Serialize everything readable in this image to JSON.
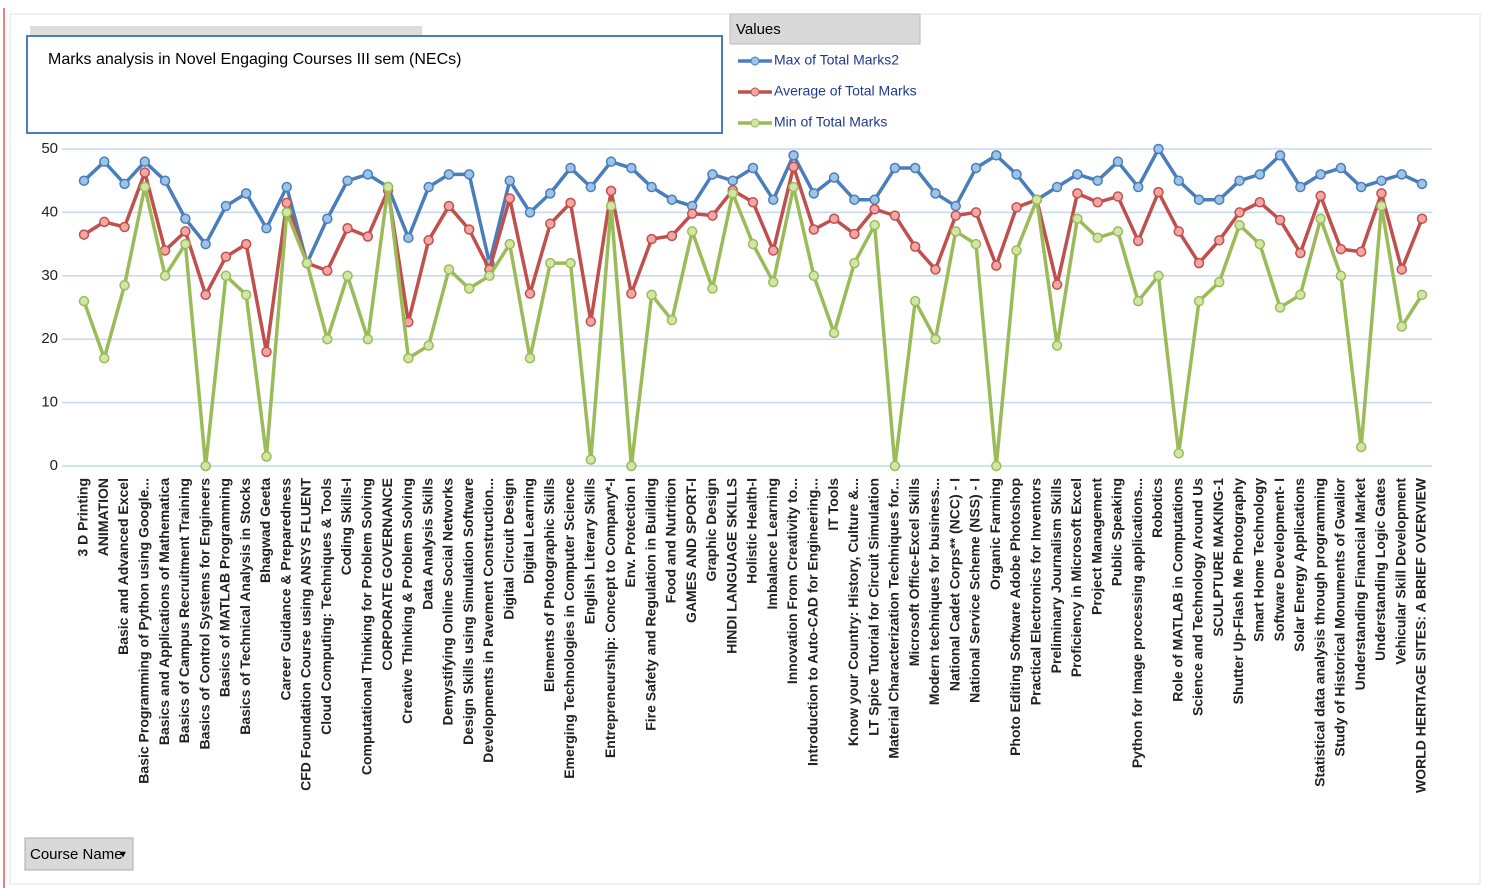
{
  "chart_data": {
    "type": "line",
    "title": "Marks analysis in Novel Engaging Courses III sem (NECs)",
    "legend_title": "Values",
    "field_button": "Course Name",
    "categories": [
      "3 D Printing",
      "ANIMATION",
      "Basic and Advanced Excel",
      "Basic Programming of Python using Google...",
      "Basics and Applications of Mathematica",
      "Basics of Campus Recruitment Training",
      "Basics of Control Systems for Engineers",
      "Basics of MATLAB Programming",
      "Basics of Technical Analysis in Stocks",
      "Bhagwad Geeta",
      "Career Guidance & Preparedness",
      "CFD Foundation Course using ANSYS FLUENT",
      "Cloud Computing: Techniques & Tools",
      "Coding Skills-I",
      "Computational Thinking for Problem Solving",
      "CORPORATE GOVERNANCE",
      "Creative Thinking & Problem Solving",
      "Data Analysis Skills",
      "Demystifying Online Social Networks",
      "Design Skills using Simulation Software",
      "Developments in Pavement Construction...",
      "Digital Circuit Design",
      "Digital Learning",
      "Elements of Photographic Skills",
      "Emerging Technologies in Computer Science",
      "English Literary Skills",
      "Entrepreneurship: Concept to Company*-I",
      "Env. Protection I",
      "Fire Safety and Regulation in Building",
      "Food and Nutrition",
      "GAMES AND SPORT-I",
      "Graphic Design",
      "HINDI LANGUAGE SKILLS",
      "Holistic Health-I",
      "Imbalance Learning",
      "Innovation From Creativity to...",
      "Introduction to Auto-CAD for Engineering...",
      "IT Tools",
      "Know your Country: History, Culture &...",
      "LT Spice Tutorial for Circuit Simulation",
      "Material Characterization Techniques for...",
      "Microsoft Office-Excel Skills",
      "Modern techniques for business...",
      "National Cadet Corps** (NCC) - I",
      "National Service Scheme (NSS) - I",
      "Organic  Farming",
      "Photo Editing Software Adobe Photoshop",
      "Practical Electronics for Inventors",
      "Preliminary Journalism Skills",
      "Proficiency in Microsoft Excel",
      "Project Management",
      "Public Speaking",
      "Python for Image processing applications...",
      "Robotics",
      "Role of MATLAB in Computations",
      "Science and Technology Around Us",
      "SCULPTURE MAKING-1",
      "Shutter Up-Flash Me Photography",
      "Smart Home Technology",
      "Software Development- I",
      "Solar Energy Applications",
      "Statistical data analysis through programming",
      "Study of Historical Monuments of Gwalior",
      "Understanding Financial Market",
      "Understanding Logic Gates",
      "Vehicular Skill Development",
      "WORLD HERITAGE SITES: A BRIEF OVERVIEW"
    ],
    "series": [
      {
        "name": "Max of Total Marks2",
        "color": "#4a7ebb",
        "values": [
          45,
          48,
          44.5,
          48,
          45,
          39,
          35,
          41,
          43,
          37.5,
          44,
          32,
          39,
          45,
          46,
          44,
          36,
          44,
          46,
          46,
          32,
          45,
          40,
          43,
          47,
          44,
          48,
          47,
          44,
          42,
          41,
          46,
          45,
          47,
          42,
          49,
          43,
          45.5,
          42,
          42,
          47,
          47,
          43,
          41,
          47,
          49,
          46,
          42,
          44,
          46,
          45,
          48,
          44,
          50,
          45,
          42,
          42,
          45,
          46,
          49,
          44,
          46,
          47,
          44,
          45,
          46,
          44.5
        ]
      },
      {
        "name": "Average of Total Marks",
        "color": "#c0504d",
        "values": [
          36.5,
          38.5,
          37.7,
          46.3,
          34,
          37,
          27,
          33,
          35,
          18,
          41.5,
          32,
          30.8,
          37.5,
          36.2,
          43.5,
          22.7,
          35.6,
          41,
          37.3,
          31,
          42.2,
          27.2,
          38.2,
          41.5,
          22.8,
          43.4,
          27.2,
          35.8,
          36.3,
          39.8,
          39.5,
          43.5,
          41.6,
          34,
          47.2,
          37.3,
          39,
          36.6,
          40.5,
          39.5,
          34.6,
          31,
          39.5,
          40,
          31.6,
          40.8,
          42,
          28.6,
          43,
          41.6,
          42.5,
          35.5,
          43.2,
          37,
          32,
          35.6,
          40,
          41.6,
          38.8,
          33.6,
          42.6,
          34.2,
          33.8,
          43,
          31,
          39
        ]
      },
      {
        "name": "Min of Total Marks",
        "color": "#9bbb59",
        "values": [
          26,
          17,
          28.5,
          44,
          30,
          35,
          0,
          30,
          27,
          1.5,
          40,
          32,
          20,
          30,
          20,
          44,
          17,
          19,
          31,
          28,
          30,
          35,
          17,
          32,
          32,
          1,
          41,
          0,
          27,
          23,
          37,
          28,
          43,
          35,
          29,
          44,
          30,
          21,
          32,
          38,
          0,
          26,
          20,
          37,
          35,
          0,
          34,
          42,
          19,
          39,
          36,
          37,
          26,
          30,
          2,
          26,
          29,
          38,
          35,
          25,
          27,
          39,
          30,
          3,
          41,
          22,
          27
        ]
      }
    ],
    "ylim": [
      0,
      50
    ],
    "yticks": [
      0,
      10,
      20,
      30,
      40,
      50
    ],
    "grid": true
  }
}
